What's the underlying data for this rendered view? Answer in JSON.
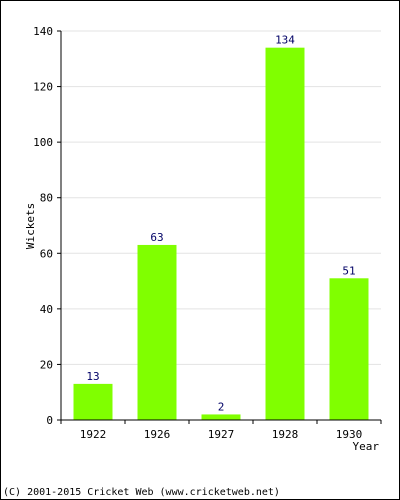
{
  "chart_data": {
    "type": "bar",
    "categories": [
      "1922",
      "1926",
      "1927",
      "1928",
      "1930"
    ],
    "values": [
      13,
      63,
      2,
      134,
      51
    ],
    "title": "",
    "xlabel": "Year",
    "ylabel": "Wickets",
    "ylim": [
      0,
      140
    ],
    "yticks": [
      0,
      20,
      40,
      60,
      80,
      100,
      120,
      140
    ],
    "grid": true,
    "bar_color": "#80ff00",
    "label_color": "#000066"
  },
  "footer": "(C) 2001-2015 Cricket Web (www.cricketweb.net)"
}
